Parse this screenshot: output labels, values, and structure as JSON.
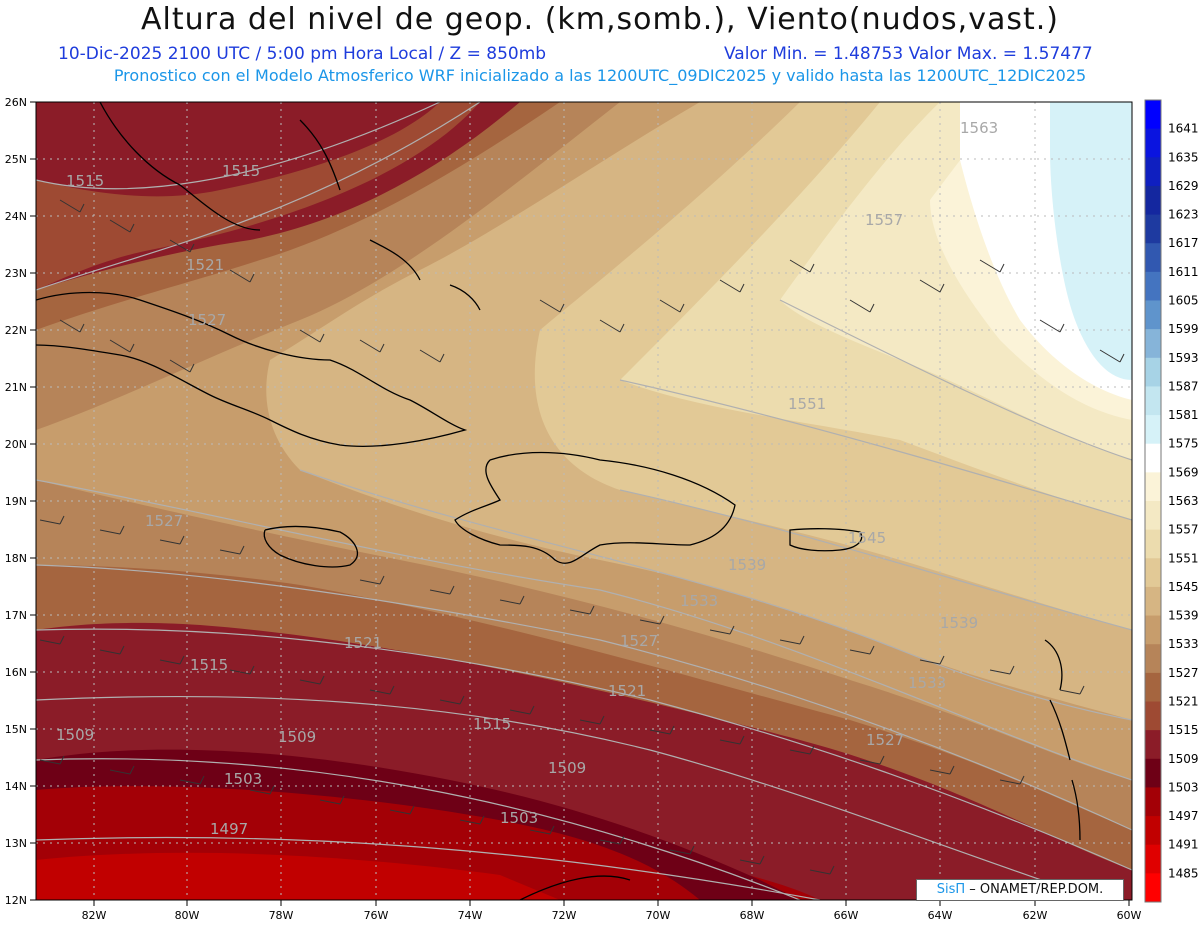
{
  "header": {
    "title": "Altura del nivel de geop. (km,somb.), Viento(nudos,vast.)",
    "line1_left": "10-Dic-2025   2100 UTC / 5:00 pm Hora Local / Z = 850mb",
    "line1_right": "Valor Min. = 1.48753   Valor Max. = 1.57477",
    "line2": "Pronostico con el Modelo Atmosferico WRF inicializado a las 1200UTC_09DIC2025 y valido hasta las  1200UTC_12DIC2025"
  },
  "axes": {
    "lat_labels": [
      "26N",
      "25N",
      "24N",
      "23N",
      "22N",
      "21N",
      "20N",
      "19N",
      "18N",
      "17N",
      "16N",
      "15N",
      "14N",
      "13N",
      "12N"
    ],
    "lon_labels": [
      "82W",
      "80W",
      "78W",
      "76W",
      "74W",
      "72W",
      "70W",
      "68W",
      "66W",
      "64W",
      "62W",
      "60W"
    ]
  },
  "colorbar": {
    "levels": [
      "1641",
      "1635",
      "1629",
      "1623",
      "1617",
      "1611",
      "1605",
      "1599",
      "1593",
      "1587",
      "1581",
      "1575",
      "1569",
      "1563",
      "1557",
      "1551",
      "1545",
      "1539",
      "1533",
      "1527",
      "1521",
      "1515",
      "1509",
      "1503",
      "1497",
      "1491",
      "1485"
    ],
    "colors": [
      "#0000ff",
      "#0a14e0",
      "#0f1fc0",
      "#14279f",
      "#1e3aa0",
      "#3158b0",
      "#4474c0",
      "#5f94cc",
      "#86b4d9",
      "#a7d3e6",
      "#c3e6f0",
      "#d6f2f8",
      "#ffffff",
      "#fbf3d8",
      "#f4e9c4",
      "#ecdcae",
      "#e2c996",
      "#d6b583",
      "#c79d6c",
      "#b68459",
      "#a5653f",
      "#9e4a33",
      "#8b1c28",
      "#6e0016",
      "#a30006",
      "#c10000",
      "#e00000",
      "#ff0000"
    ]
  },
  "contour_labels": [
    {
      "text": "1515"
    },
    {
      "text": "1515"
    },
    {
      "text": "1521"
    },
    {
      "text": "1527"
    },
    {
      "text": "1563"
    },
    {
      "text": "1557"
    },
    {
      "text": "1551"
    },
    {
      "text": "1527"
    },
    {
      "text": "1539"
    },
    {
      "text": "1533"
    },
    {
      "text": "1521"
    },
    {
      "text": "1527"
    },
    {
      "text": "1515"
    },
    {
      "text": "1521"
    },
    {
      "text": "1515"
    },
    {
      "text": "1509"
    },
    {
      "text": "1509"
    },
    {
      "text": "1503"
    },
    {
      "text": "1509"
    },
    {
      "text": "1503"
    },
    {
      "text": "1497"
    },
    {
      "text": "1539"
    },
    {
      "text": "1533"
    },
    {
      "text": "1527"
    },
    {
      "text": "1545"
    }
  ],
  "credit": {
    "brand": "SisΠ",
    "rest": " – ONAMET/REP.DOM."
  }
}
